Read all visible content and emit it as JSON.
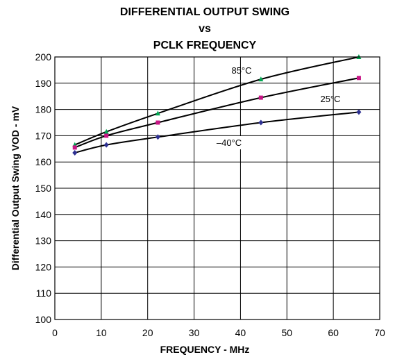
{
  "chart_data": {
    "type": "line",
    "title": [
      "DIFFERENTIAL OUTPUT SWING",
      "vs",
      "PCLK FREQUENCY"
    ],
    "xlabel": "FREQUENCY - MHz",
    "ylabel": "Differential Output Swing VOD - mV",
    "xlim": [
      0,
      70
    ],
    "ylim": [
      100,
      200
    ],
    "xticks": [
      0,
      10,
      20,
      30,
      40,
      50,
      60,
      70
    ],
    "yticks": [
      100,
      110,
      120,
      130,
      140,
      150,
      160,
      170,
      180,
      190,
      200
    ],
    "grid": true,
    "series": [
      {
        "name": "85°C",
        "marker": "triangle",
        "marker_color": "#00a651",
        "x": [
          4.3,
          11.1,
          22.2,
          44.4,
          65.5
        ],
        "y": [
          166.5,
          171.5,
          178.5,
          191.5,
          200
        ]
      },
      {
        "name": "25°C",
        "marker": "square",
        "marker_color": "#c71585",
        "x": [
          4.3,
          11.1,
          22.2,
          44.4,
          65.5
        ],
        "y": [
          165.5,
          170,
          175,
          184.5,
          192
        ]
      },
      {
        "name": "–40°C",
        "marker": "diamond",
        "marker_color": "#2e3192",
        "x": [
          4.3,
          11.1,
          22.2,
          44.4,
          65.5
        ],
        "y": [
          163.5,
          166.5,
          169.5,
          175,
          179
        ]
      }
    ]
  }
}
